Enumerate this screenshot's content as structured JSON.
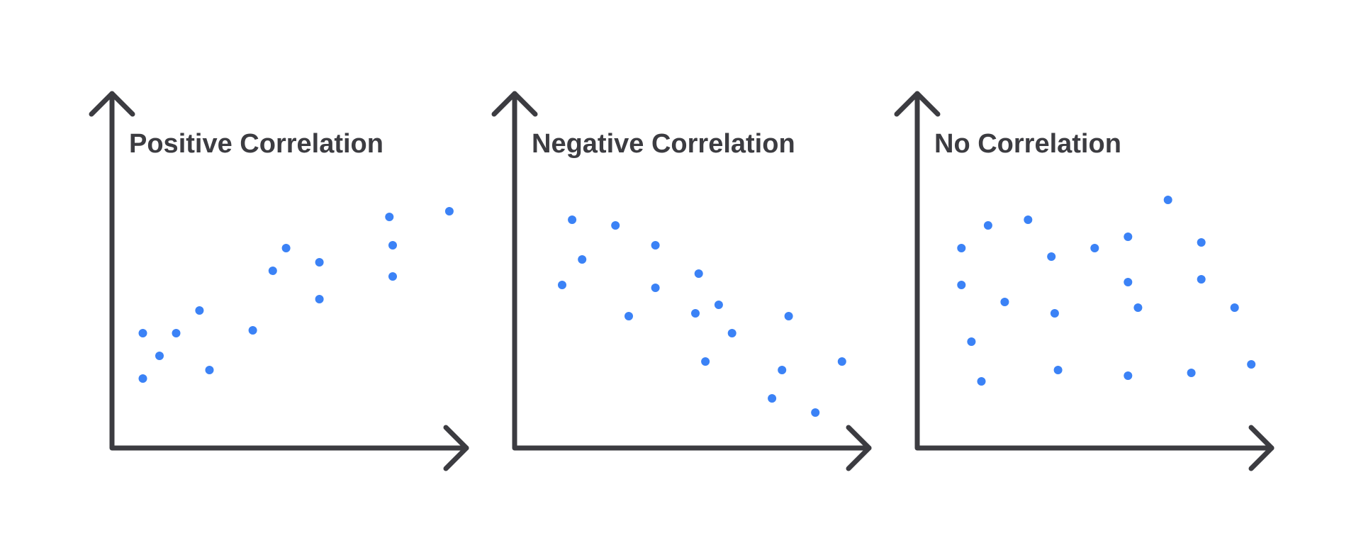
{
  "chart_data": [
    {
      "type": "scatter",
      "title": "Positive Correlation",
      "xlabel": "",
      "ylabel": "",
      "xlim": [
        0,
        100
      ],
      "ylim": [
        0,
        100
      ],
      "grid": false,
      "point_color": "#3b82f6",
      "axis_color": "#3c3c41",
      "points": [
        {
          "x": 5,
          "y": 33
        },
        {
          "x": 5,
          "y": 17
        },
        {
          "x": 10,
          "y": 25
        },
        {
          "x": 15,
          "y": 33
        },
        {
          "x": 22,
          "y": 41
        },
        {
          "x": 25,
          "y": 20
        },
        {
          "x": 38,
          "y": 34
        },
        {
          "x": 44,
          "y": 55
        },
        {
          "x": 48,
          "y": 63
        },
        {
          "x": 58,
          "y": 58
        },
        {
          "x": 58,
          "y": 45
        },
        {
          "x": 79,
          "y": 74
        },
        {
          "x": 80,
          "y": 64
        },
        {
          "x": 80,
          "y": 53
        },
        {
          "x": 97,
          "y": 76
        }
      ]
    },
    {
      "type": "scatter",
      "title": "Negative Correlation",
      "xlabel": "",
      "ylabel": "",
      "xlim": [
        0,
        100
      ],
      "ylim": [
        0,
        100
      ],
      "grid": false,
      "point_color": "#3b82f6",
      "axis_color": "#3c3c41",
      "points": [
        {
          "x": 10,
          "y": 50
        },
        {
          "x": 13,
          "y": 73
        },
        {
          "x": 16,
          "y": 59
        },
        {
          "x": 26,
          "y": 71
        },
        {
          "x": 30,
          "y": 39
        },
        {
          "x": 38,
          "y": 64
        },
        {
          "x": 38,
          "y": 49
        },
        {
          "x": 50,
          "y": 40
        },
        {
          "x": 51,
          "y": 54
        },
        {
          "x": 53,
          "y": 23
        },
        {
          "x": 57,
          "y": 43
        },
        {
          "x": 61,
          "y": 33
        },
        {
          "x": 73,
          "y": 10
        },
        {
          "x": 76,
          "y": 20
        },
        {
          "x": 78,
          "y": 39
        },
        {
          "x": 86,
          "y": 5
        },
        {
          "x": 94,
          "y": 23
        }
      ]
    },
    {
      "type": "scatter",
      "title": "No Correlation",
      "xlabel": "",
      "ylabel": "",
      "xlim": [
        0,
        100
      ],
      "ylim": [
        0,
        100
      ],
      "grid": false,
      "point_color": "#3b82f6",
      "axis_color": "#3c3c41",
      "points": [
        {
          "x": 9,
          "y": 63
        },
        {
          "x": 9,
          "y": 50
        },
        {
          "x": 12,
          "y": 30
        },
        {
          "x": 15,
          "y": 16
        },
        {
          "x": 17,
          "y": 71
        },
        {
          "x": 22,
          "y": 44
        },
        {
          "x": 29,
          "y": 73
        },
        {
          "x": 36,
          "y": 60
        },
        {
          "x": 37,
          "y": 40
        },
        {
          "x": 38,
          "y": 20
        },
        {
          "x": 49,
          "y": 63
        },
        {
          "x": 59,
          "y": 67
        },
        {
          "x": 59,
          "y": 51
        },
        {
          "x": 59,
          "y": 18
        },
        {
          "x": 62,
          "y": 42
        },
        {
          "x": 71,
          "y": 80
        },
        {
          "x": 78,
          "y": 19
        },
        {
          "x": 81,
          "y": 65
        },
        {
          "x": 81,
          "y": 52
        },
        {
          "x": 91,
          "y": 42
        },
        {
          "x": 96,
          "y": 22
        }
      ]
    }
  ]
}
